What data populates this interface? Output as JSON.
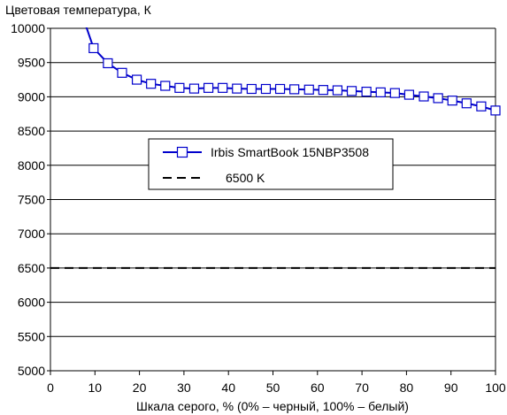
{
  "chart_data": {
    "type": "line",
    "title": "",
    "ylabel": "Цветовая температура, К",
    "xlabel": "Шкала серого, % (0% – черный, 100% – белый)",
    "xlim": [
      0,
      100
    ],
    "ylim": [
      5000,
      10000
    ],
    "xticks": [
      0,
      10,
      20,
      30,
      40,
      50,
      60,
      70,
      80,
      90,
      100
    ],
    "yticks": [
      5000,
      5500,
      6000,
      6500,
      7000,
      7500,
      8000,
      8500,
      9000,
      9500,
      10000
    ],
    "grid": "horizontal",
    "legend_position": "center",
    "series": [
      {
        "name": "Irbis SmartBook 15NBP3508",
        "color": "#0000cc",
        "style": "solid-with-square-markers",
        "line_only": [
          {
            "x": 7.9,
            "y": 10050
          },
          {
            "x": 9.7,
            "y": 9710
          }
        ],
        "points": [
          {
            "x": 9.7,
            "y": 9710
          },
          {
            "x": 12.9,
            "y": 9490
          },
          {
            "x": 16.1,
            "y": 9350
          },
          {
            "x": 19.4,
            "y": 9250
          },
          {
            "x": 22.6,
            "y": 9190
          },
          {
            "x": 25.8,
            "y": 9160
          },
          {
            "x": 29.0,
            "y": 9130
          },
          {
            "x": 32.3,
            "y": 9120
          },
          {
            "x": 35.5,
            "y": 9130
          },
          {
            "x": 38.7,
            "y": 9130
          },
          {
            "x": 41.9,
            "y": 9120
          },
          {
            "x": 45.2,
            "y": 9115
          },
          {
            "x": 48.4,
            "y": 9115
          },
          {
            "x": 51.6,
            "y": 9115
          },
          {
            "x": 54.8,
            "y": 9110
          },
          {
            "x": 58.1,
            "y": 9105
          },
          {
            "x": 61.3,
            "y": 9100
          },
          {
            "x": 64.5,
            "y": 9095
          },
          {
            "x": 67.7,
            "y": 9085
          },
          {
            "x": 71.0,
            "y": 9075
          },
          {
            "x": 74.2,
            "y": 9065
          },
          {
            "x": 77.4,
            "y": 9055
          },
          {
            "x": 80.6,
            "y": 9030
          },
          {
            "x": 83.9,
            "y": 9005
          },
          {
            "x": 87.1,
            "y": 8980
          },
          {
            "x": 90.3,
            "y": 8945
          },
          {
            "x": 93.5,
            "y": 8905
          },
          {
            "x": 96.8,
            "y": 8860
          },
          {
            "x": 100.0,
            "y": 8800
          }
        ]
      },
      {
        "name": "6500 K",
        "color": "#000000",
        "style": "dashed",
        "points": [
          {
            "x": 0,
            "y": 6500
          },
          {
            "x": 100,
            "y": 6500
          }
        ]
      }
    ]
  }
}
